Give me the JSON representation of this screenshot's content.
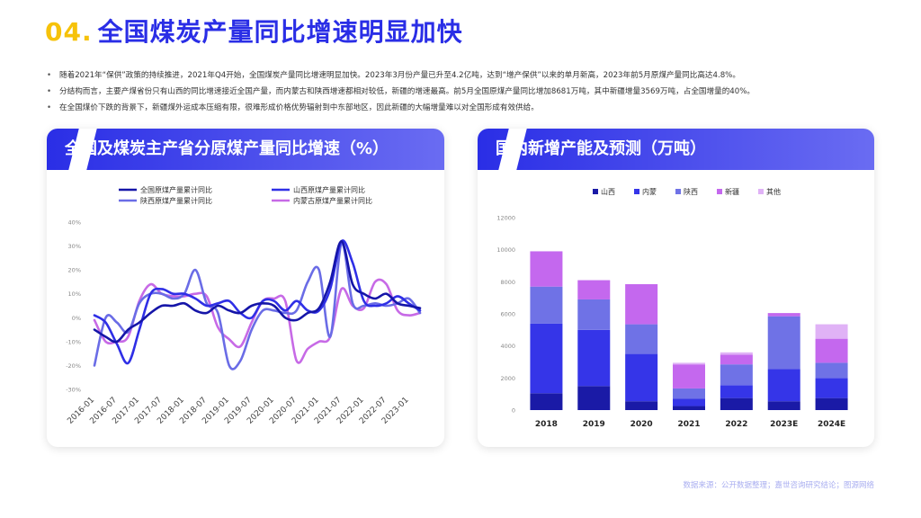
{
  "header": {
    "number": "04.",
    "title": "全国煤炭产量同比增速明显加快"
  },
  "bullets": [
    "随着2021年“保供”政策的持续推进，2021年Q4开始，全国煤炭产量同比增速明显加快。2023年3月份产量已升至4.2亿吨，达到“增产保供”以来的单月新高，2023年前5月原煤产量同比高达4.8%。",
    "分结构而言，主要产煤省份只有山西的同比增速接近全国产量，而内蒙古和陕西增速都相对较低，新疆的增速最高。前5月全国原煤产量同比增加8681万吨，其中新疆增量3569万吨，占全国增量的40%。",
    "在全国煤价下跌的背景下，新疆煤外运成本压缩有限，很难形成价格优势辐射到中东部地区，因此新疆的大幅增量难以对全国形成有效供给。"
  ],
  "left_card": {
    "title": "全国及煤炭主产省分原煤产量同比增速（%）"
  },
  "right_card": {
    "title": "国内新增产能及预测（万吨）"
  },
  "source": "数据来源：公开数据整理；嘉世咨询研究结论；图源网络",
  "colors": {
    "accent": "#2a2ee6",
    "yellow": "#f6c20a"
  },
  "chart_data": [
    {
      "type": "line",
      "title": "全国及煤炭主产省分原煤产量同比增速（%）",
      "x": [
        "2016-01",
        "2016-04",
        "2016-07",
        "2016-10",
        "2017-01",
        "2017-04",
        "2017-07",
        "2017-10",
        "2018-01",
        "2018-04",
        "2018-07",
        "2018-10",
        "2019-01",
        "2019-04",
        "2019-07",
        "2019-10",
        "2020-01",
        "2020-04",
        "2020-07",
        "2020-10",
        "2021-01",
        "2021-04",
        "2021-07",
        "2021-10",
        "2022-01",
        "2022-04",
        "2022-07",
        "2022-10",
        "2023-01",
        "2023-04"
      ],
      "x_tick_labels": [
        "2016-01",
        "2016-07",
        "2017-01",
        "2017-07",
        "2018-01",
        "2018-07",
        "2019-01",
        "2019-07",
        "2020-01",
        "2020-07",
        "2021-01",
        "2021-07",
        "2022-01",
        "2022-07",
        "2023-01"
      ],
      "ylim": [
        -30,
        40
      ],
      "y_ticks": [
        "40%",
        "30%",
        "20%",
        "10%",
        "0%",
        "-10%",
        "-20%",
        "-30%"
      ],
      "legend": "top",
      "series": [
        {
          "name": "全国原煤产量累计同比",
          "color": "#1515a8",
          "width": 2.6,
          "values": [
            -5,
            -8,
            -10,
            -5,
            -2,
            2,
            5,
            5,
            6,
            3,
            2,
            5,
            3,
            2,
            5,
            6,
            5,
            0,
            -1,
            2,
            4,
            15,
            32,
            14,
            10,
            8,
            10,
            6,
            5,
            4
          ]
        },
        {
          "name": "山西原煤产量累计同比",
          "color": "#2f2fe6",
          "width": 2.6,
          "values": [
            1,
            -2,
            -11,
            -19,
            -5,
            10,
            12,
            10,
            10,
            8,
            5,
            6,
            7,
            2,
            0,
            7,
            7,
            3,
            7,
            3,
            3,
            12,
            32,
            23,
            7,
            5,
            6,
            9,
            6,
            3
          ]
        },
        {
          "name": "陕西原煤产量累计同比",
          "color": "#6a6ce6",
          "width": 2.6,
          "values": [
            -20,
            0,
            -2,
            -6,
            6,
            10,
            10,
            8,
            10,
            20,
            6,
            2,
            -20,
            -18,
            -5,
            3,
            3,
            2,
            3,
            15,
            20,
            -8,
            31,
            6,
            5,
            6,
            5,
            6,
            8,
            2
          ]
        },
        {
          "name": "内蒙古原煤产量累计同比",
          "color": "#c76ae6",
          "width": 2.6,
          "values": [
            -1,
            -10,
            -10,
            -8,
            7,
            14,
            10,
            9,
            9,
            10,
            9,
            -4,
            -9,
            -12,
            -2,
            7,
            8,
            7,
            -18,
            -13,
            -10,
            -8,
            12,
            5,
            4,
            15,
            14,
            3,
            1,
            2
          ]
        }
      ]
    },
    {
      "type": "bar",
      "stacked": true,
      "title": "国内新增产能及预测（万吨）",
      "categories": [
        "2018",
        "2019",
        "2020",
        "2021",
        "2022",
        "2023E",
        "2024E"
      ],
      "ylim": [
        0,
        12000
      ],
      "y_ticks": [
        "12000",
        "10000",
        "8000",
        "6000",
        "4000",
        "2000",
        "0"
      ],
      "legend": "top",
      "series": [
        {
          "name": "山西",
          "color": "#1a1aa6",
          "values": [
            1050,
            1500,
            550,
            250,
            750,
            550,
            750
          ]
        },
        {
          "name": "内蒙",
          "color": "#3535e8",
          "values": [
            4350,
            3500,
            2950,
            450,
            800,
            2000,
            1250
          ]
        },
        {
          "name": "陕西",
          "color": "#6f72e6",
          "values": [
            2300,
            1900,
            1850,
            650,
            1300,
            3300,
            950
          ]
        },
        {
          "name": "新疆",
          "color": "#c468ee",
          "values": [
            2200,
            1200,
            2500,
            1500,
            600,
            200,
            1500
          ]
        },
        {
          "name": "其他",
          "color": "#e0b2f6",
          "values": [
            0,
            0,
            0,
            100,
            150,
            0,
            900
          ]
        }
      ]
    }
  ]
}
